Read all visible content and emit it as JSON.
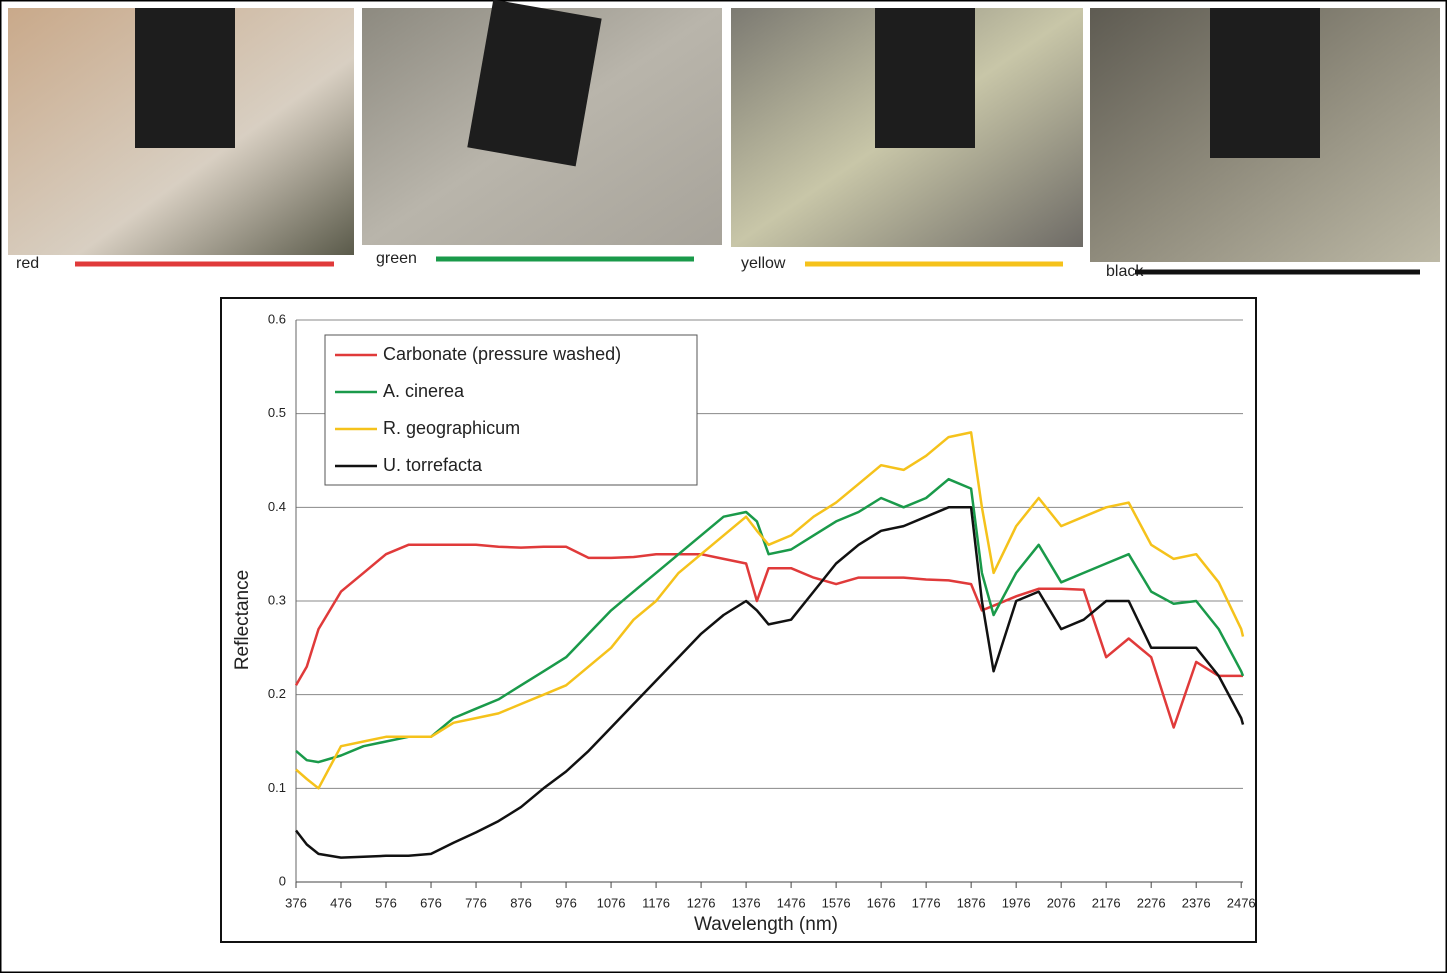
{
  "photo_labels": [
    {
      "label": "red",
      "color": "#e03a3a"
    },
    {
      "label": "green",
      "color": "#1a9a4a"
    },
    {
      "label": "yellow",
      "color": "#f5c21b"
    },
    {
      "label": "black",
      "color": "#111111"
    }
  ],
  "chart_data": {
    "type": "line",
    "x_label": "Wavelength (nm)",
    "y_label": "Reflectance",
    "x": [
      376,
      400,
      426,
      476,
      526,
      576,
      626,
      676,
      726,
      776,
      826,
      876,
      926,
      976,
      1026,
      1076,
      1126,
      1176,
      1226,
      1276,
      1326,
      1376,
      1400,
      1426,
      1476,
      1526,
      1576,
      1626,
      1676,
      1726,
      1776,
      1826,
      1876,
      1900,
      1926,
      1976,
      2026,
      2076,
      2126,
      2176,
      2226,
      2276,
      2326,
      2376,
      2426,
      2476,
      2480
    ],
    "series": [
      {
        "name": "Carbonate (pressure washed)",
        "color": "#e03a3a",
        "values": [
          0.21,
          0.23,
          0.27,
          0.31,
          0.33,
          0.35,
          0.36,
          0.36,
          0.36,
          0.36,
          0.358,
          0.357,
          0.358,
          0.358,
          0.346,
          0.346,
          0.347,
          0.35,
          0.35,
          0.35,
          0.345,
          0.34,
          0.3,
          0.335,
          0.335,
          0.325,
          0.318,
          0.325,
          0.325,
          0.325,
          0.323,
          0.322,
          0.318,
          0.29,
          0.295,
          0.305,
          0.313,
          0.313,
          0.312,
          0.24,
          0.26,
          0.24,
          0.165,
          0.235,
          0.22,
          0.22,
          0.22
        ]
      },
      {
        "name": "A. cinerea",
        "color": "#1a9a4a",
        "values": [
          0.14,
          0.13,
          0.128,
          0.135,
          0.145,
          0.15,
          0.155,
          0.155,
          0.175,
          0.185,
          0.195,
          0.21,
          0.225,
          0.24,
          0.265,
          0.29,
          0.31,
          0.33,
          0.35,
          0.37,
          0.39,
          0.395,
          0.385,
          0.35,
          0.355,
          0.37,
          0.385,
          0.395,
          0.41,
          0.4,
          0.41,
          0.43,
          0.42,
          0.33,
          0.285,
          0.33,
          0.36,
          0.32,
          0.33,
          0.34,
          0.35,
          0.31,
          0.297,
          0.3,
          0.27,
          0.225,
          0.22
        ]
      },
      {
        "name": "R. geographicum",
        "color": "#f5c21b",
        "values": [
          0.12,
          0.11,
          0.1,
          0.145,
          0.15,
          0.155,
          0.155,
          0.155,
          0.17,
          0.175,
          0.18,
          0.19,
          0.2,
          0.21,
          0.23,
          0.25,
          0.28,
          0.3,
          0.33,
          0.35,
          0.37,
          0.39,
          0.375,
          0.36,
          0.37,
          0.39,
          0.405,
          0.425,
          0.445,
          0.44,
          0.455,
          0.475,
          0.48,
          0.4,
          0.33,
          0.38,
          0.41,
          0.38,
          0.39,
          0.4,
          0.405,
          0.36,
          0.345,
          0.35,
          0.32,
          0.27,
          0.262
        ]
      },
      {
        "name": "U. torrefacta",
        "color": "#111111",
        "values": [
          0.055,
          0.04,
          0.03,
          0.026,
          0.027,
          0.028,
          0.028,
          0.03,
          0.042,
          0.053,
          0.065,
          0.08,
          0.1,
          0.118,
          0.14,
          0.165,
          0.19,
          0.215,
          0.24,
          0.265,
          0.285,
          0.3,
          0.29,
          0.275,
          0.28,
          0.31,
          0.34,
          0.36,
          0.375,
          0.38,
          0.39,
          0.4,
          0.4,
          0.3,
          0.225,
          0.3,
          0.31,
          0.27,
          0.28,
          0.3,
          0.3,
          0.25,
          0.25,
          0.25,
          0.22,
          0.175,
          0.168
        ]
      }
    ],
    "xlim": [
      376,
      2480
    ],
    "xticks": [
      376,
      476,
      576,
      676,
      776,
      876,
      976,
      1076,
      1176,
      1276,
      1376,
      1476,
      1576,
      1676,
      1776,
      1876,
      1976,
      2076,
      2176,
      2276,
      2376,
      2476
    ],
    "ylim": [
      0,
      0.6
    ],
    "yticks": [
      0,
      0.1,
      0.2,
      0.3,
      0.4,
      0.5,
      0.6
    ],
    "grid": true,
    "legend": "upper left"
  }
}
